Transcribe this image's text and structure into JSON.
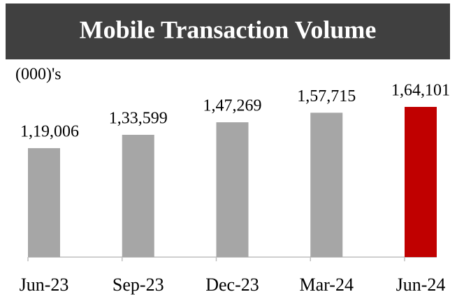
{
  "chart_data": {
    "type": "bar",
    "title": "Mobile Transaction Volume",
    "subtitle": "(000)'s",
    "categories": [
      "Jun-23",
      "Sep-23",
      "Dec-23",
      "Mar-24",
      "Jun-24"
    ],
    "values": [
      119006,
      133599,
      147269,
      157715,
      164101
    ],
    "value_labels": [
      "1,19,006",
      "1,33,599",
      "1,47,269",
      "1,57,715",
      "1,64,101"
    ],
    "colors": [
      "#a6a6a6",
      "#a6a6a6",
      "#a6a6a6",
      "#a6a6a6",
      "#c00000"
    ]
  }
}
